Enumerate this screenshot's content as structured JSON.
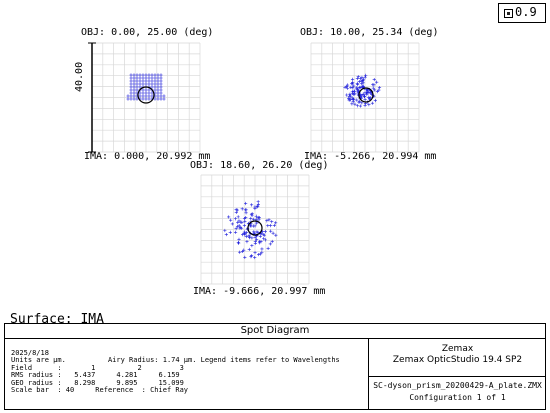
{
  "legend": {
    "label": "0.9"
  },
  "plots": [
    {
      "obj": "OBJ: 0.00, 25.00 (deg)",
      "ima": "IMA: 0.000, 20.992 mm"
    },
    {
      "obj": "OBJ: 10.00, 25.34 (deg)",
      "ima": "IMA: -5.266, 20.994 mm"
    },
    {
      "obj": "OBJ: 18.60, 26.20 (deg)",
      "ima": "IMA: -9.666, 20.997 mm"
    }
  ],
  "scale_bar": {
    "label": "40.00"
  },
  "surface": "Surface: IMA",
  "panel": {
    "title": "Spot Diagram",
    "date": "2025/8/18",
    "units": "Units are µm.",
    "airy": "Airy Radius: 1.74 µm. Legend items refer to Wavelengths",
    "field_label": "Field      :",
    "field_values": [
      "1",
      "2",
      "3"
    ],
    "rms_label": "RMS radius :",
    "rms_values": [
      "5.437",
      "4.281",
      "6.159"
    ],
    "geo_label": "GEO radius :",
    "geo_values": [
      "8.298",
      "9.895",
      "15.099"
    ],
    "scale_label": "Scale bar  : 40",
    "reference": "Reference  : Chief Ray",
    "company": "Zemax",
    "product": "Zemax OpticStudio 19.4 SP2",
    "file": "SC-dyson_prism_20200429-A_plate.ZMX",
    "config": "Configuration 1 of 1"
  }
}
